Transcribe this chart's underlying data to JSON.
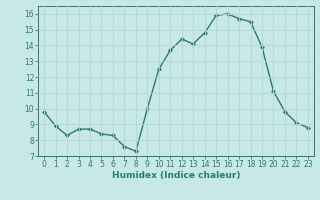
{
  "x": [
    0,
    1,
    2,
    3,
    4,
    5,
    6,
    7,
    8,
    9,
    10,
    11,
    12,
    13,
    14,
    15,
    16,
    17,
    18,
    19,
    20,
    21,
    22,
    23
  ],
  "y": [
    9.8,
    8.9,
    8.3,
    8.7,
    8.7,
    8.4,
    8.3,
    7.6,
    7.3,
    10.0,
    12.5,
    13.7,
    14.4,
    14.1,
    14.8,
    15.9,
    16.0,
    15.7,
    15.5,
    13.9,
    11.1,
    9.8,
    9.1,
    8.8
  ],
  "line_color": "#2d7a6e",
  "bg_color": "#c8e8e8",
  "grid_color": "#b0d8d8",
  "xlabel": "Humidex (Indice chaleur)",
  "ylim": [
    7,
    16.5
  ],
  "xlim": [
    -0.5,
    23.5
  ],
  "yticks": [
    7,
    8,
    9,
    10,
    11,
    12,
    13,
    14,
    15,
    16
  ],
  "xticks": [
    0,
    1,
    2,
    3,
    4,
    5,
    6,
    7,
    8,
    9,
    10,
    11,
    12,
    13,
    14,
    15,
    16,
    17,
    18,
    19,
    20,
    21,
    22,
    23
  ],
  "xtick_labels": [
    "0",
    "1",
    "2",
    "3",
    "4",
    "5",
    "6",
    "7",
    "8",
    "9",
    "10",
    "11",
    "12",
    "13",
    "14",
    "15",
    "16",
    "17",
    "18",
    "19",
    "20",
    "21",
    "22",
    "23"
  ],
  "marker": "D",
  "marker_size": 2.0,
  "line_width": 1.0,
  "xlabel_fontsize": 6.5,
  "tick_fontsize": 5.5
}
